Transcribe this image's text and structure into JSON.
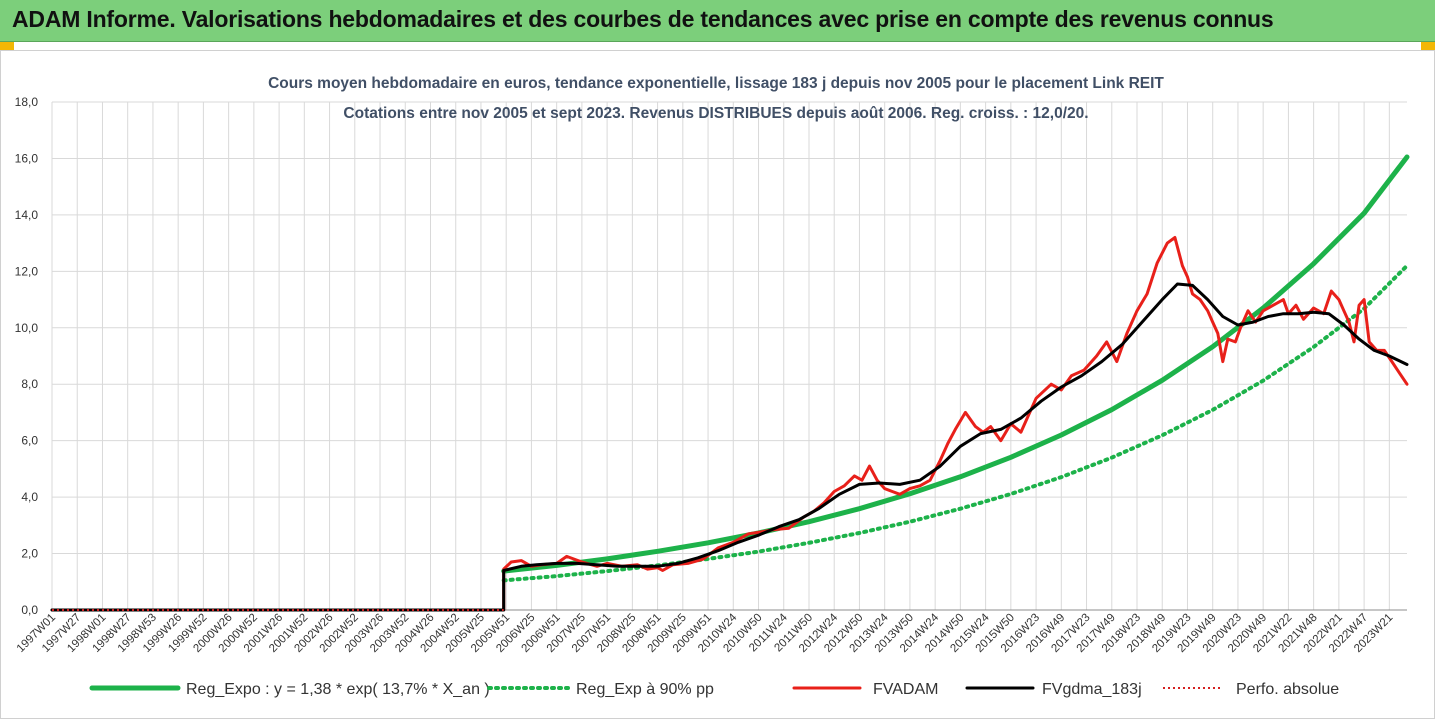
{
  "banner": {
    "title": "ADAM Informe. Valorisations hebdomadaires et des courbes de tendances avec prise en compte des revenus connus"
  },
  "colors": {
    "banner": "#7ccf7b",
    "corner": "#f2b705",
    "reg_expo": "#1db24a",
    "fvadam": "#e8201a",
    "fvgdma": "#000000",
    "perfo": "#d42020",
    "grid": "#d9d9d9"
  },
  "chart_data": {
    "type": "line",
    "title": "Cours moyen hebdomadaire en euros, tendance exponentielle, lissage 183 j depuis nov 2005 pour le placement Link REIT",
    "subtitle": "Cotations entre nov 2005 et sept 2023. Revenus DISTRIBUES depuis août 2006. Reg. croiss. : 12,0/20.",
    "ylim": [
      0,
      18
    ],
    "yticks": [
      "0,0",
      "2,0",
      "4,0",
      "6,0",
      "8,0",
      "10,0",
      "12,0",
      "14,0",
      "16,0",
      "18,0"
    ],
    "xlim": [
      1997.0,
      2023.85
    ],
    "xticks": [
      {
        "label": "1997W01",
        "x": 1997.0
      },
      {
        "label": "1997W27",
        "x": 1997.5
      },
      {
        "label": "1998W01",
        "x": 1998.0
      },
      {
        "label": "1998W27",
        "x": 1998.5
      },
      {
        "label": "1998W53",
        "x": 1999.0
      },
      {
        "label": "1999W26",
        "x": 1999.5
      },
      {
        "label": "1999W52",
        "x": 2000.0
      },
      {
        "label": "2000W26",
        "x": 2000.5
      },
      {
        "label": "2000W52",
        "x": 2001.0
      },
      {
        "label": "2001W26",
        "x": 2001.5
      },
      {
        "label": "2001W52",
        "x": 2002.0
      },
      {
        "label": "2002W26",
        "x": 2002.5
      },
      {
        "label": "2002W52",
        "x": 2003.0
      },
      {
        "label": "2003W26",
        "x": 2003.5
      },
      {
        "label": "2003W52",
        "x": 2004.0
      },
      {
        "label": "2004W26",
        "x": 2004.5
      },
      {
        "label": "2004W52",
        "x": 2005.0
      },
      {
        "label": "2005W25",
        "x": 2005.5
      },
      {
        "label": "2005W51",
        "x": 2006.0
      },
      {
        "label": "2006W25",
        "x": 2006.5
      },
      {
        "label": "2006W51",
        "x": 2007.0
      },
      {
        "label": "2007W25",
        "x": 2007.5
      },
      {
        "label": "2007W51",
        "x": 2008.0
      },
      {
        "label": "2008W25",
        "x": 2008.5
      },
      {
        "label": "2008W51",
        "x": 2009.0
      },
      {
        "label": "2009W25",
        "x": 2009.5
      },
      {
        "label": "2009W51",
        "x": 2010.0
      },
      {
        "label": "2010W24",
        "x": 2010.5
      },
      {
        "label": "2010W50",
        "x": 2011.0
      },
      {
        "label": "2011W24",
        "x": 2011.5
      },
      {
        "label": "2011W50",
        "x": 2012.0
      },
      {
        "label": "2012W24",
        "x": 2012.5
      },
      {
        "label": "2012W50",
        "x": 2013.0
      },
      {
        "label": "2013W24",
        "x": 2013.5
      },
      {
        "label": "2013W50",
        "x": 2014.0
      },
      {
        "label": "2014W24",
        "x": 2014.5
      },
      {
        "label": "2014W50",
        "x": 2015.0
      },
      {
        "label": "2015W24",
        "x": 2015.5
      },
      {
        "label": "2015W50",
        "x": 2016.0
      },
      {
        "label": "2016W23",
        "x": 2016.5
      },
      {
        "label": "2016W49",
        "x": 2017.0
      },
      {
        "label": "2017W23",
        "x": 2017.5
      },
      {
        "label": "2017W49",
        "x": 2018.0
      },
      {
        "label": "2018W23",
        "x": 2018.5
      },
      {
        "label": "2018W49",
        "x": 2019.0
      },
      {
        "label": "2019W23",
        "x": 2019.5
      },
      {
        "label": "2019W49",
        "x": 2020.0
      },
      {
        "label": "2020W23",
        "x": 2020.5
      },
      {
        "label": "2020W49",
        "x": 2021.0
      },
      {
        "label": "2021W22",
        "x": 2021.5
      },
      {
        "label": "2021W48",
        "x": 2022.0
      },
      {
        "label": "2022W21",
        "x": 2022.5
      },
      {
        "label": "2022W47",
        "x": 2023.0
      },
      {
        "label": "2023W21",
        "x": 2023.5
      }
    ],
    "grid": true,
    "legend": "bottom",
    "series": [
      {
        "name": "Reg_Expo : y = 1,38 * exp( 13,7% *  X_an )",
        "style": "solid-thick",
        "color": "#1db24a",
        "x": [
          2005.95,
          2007,
          2008,
          2009,
          2010,
          2011,
          2012,
          2013,
          2014,
          2015,
          2016,
          2017,
          2018,
          2019,
          2020,
          2021,
          2022,
          2023,
          2023.85
        ],
        "y": [
          1.38,
          1.58,
          1.81,
          2.08,
          2.38,
          2.73,
          3.13,
          3.59,
          4.12,
          4.72,
          5.41,
          6.2,
          7.1,
          8.14,
          9.33,
          10.7,
          12.27,
          14.06,
          16.05
        ]
      },
      {
        "name": "Reg_Exp à 90% pp",
        "style": "dotted-thick",
        "color": "#1db24a",
        "x": [
          2005.95,
          2007,
          2008,
          2009,
          2010,
          2011,
          2012,
          2013,
          2014,
          2015,
          2016,
          2017,
          2018,
          2019,
          2020,
          2021,
          2022,
          2023,
          2023.85
        ],
        "y": [
          1.05,
          1.2,
          1.38,
          1.58,
          1.81,
          2.07,
          2.38,
          2.73,
          3.13,
          3.59,
          4.11,
          4.71,
          5.4,
          6.19,
          7.09,
          8.13,
          9.32,
          10.68,
          12.2
        ]
      },
      {
        "name": "FVADAM",
        "style": "solid",
        "color": "#e8201a",
        "x": [
          1997.0,
          2005.95,
          2005.95,
          2006.1,
          2006.3,
          2006.5,
          2006.7,
          2007.0,
          2007.2,
          2007.5,
          2007.8,
          2008.0,
          2008.3,
          2008.6,
          2008.8,
          2009.0,
          2009.1,
          2009.3,
          2009.6,
          2009.9,
          2010.2,
          2010.5,
          2010.8,
          2011.0,
          2011.3,
          2011.6,
          2011.9,
          2012.1,
          2012.3,
          2012.5,
          2012.7,
          2012.9,
          2013.05,
          2013.2,
          2013.35,
          2013.5,
          2013.65,
          2013.8,
          2014.0,
          2014.2,
          2014.4,
          2014.6,
          2014.75,
          2014.9,
          2015.1,
          2015.3,
          2015.45,
          2015.6,
          2015.8,
          2016.0,
          2016.2,
          2016.35,
          2016.5,
          2016.8,
          2017.0,
          2017.2,
          2017.45,
          2017.7,
          2017.9,
          2018.1,
          2018.3,
          2018.5,
          2018.7,
          2018.9,
          2019.1,
          2019.25,
          2019.4,
          2019.5,
          2019.6,
          2019.75,
          2019.9,
          2020.0,
          2020.1,
          2020.2,
          2020.3,
          2020.45,
          2020.55,
          2020.7,
          2020.85,
          2021.0,
          2021.2,
          2021.4,
          2021.5,
          2021.65,
          2021.8,
          2022.0,
          2022.2,
          2022.35,
          2022.5,
          2022.6,
          2022.7,
          2022.8,
          2022.9,
          2023.0,
          2023.1,
          2023.25,
          2023.4,
          2023.55,
          2023.7,
          2023.85
        ],
        "y": [
          0.0,
          0.0,
          1.45,
          1.7,
          1.75,
          1.55,
          1.6,
          1.65,
          1.9,
          1.7,
          1.55,
          1.65,
          1.55,
          1.6,
          1.45,
          1.5,
          1.4,
          1.6,
          1.65,
          1.8,
          2.2,
          2.4,
          2.7,
          2.75,
          2.85,
          2.9,
          3.3,
          3.5,
          3.8,
          4.2,
          4.4,
          4.75,
          4.6,
          5.1,
          4.6,
          4.3,
          4.2,
          4.1,
          4.3,
          4.4,
          4.6,
          5.3,
          5.9,
          6.4,
          7.0,
          6.5,
          6.3,
          6.5,
          6.0,
          6.6,
          6.3,
          6.9,
          7.5,
          8.0,
          7.8,
          8.3,
          8.5,
          9.0,
          9.5,
          8.8,
          9.8,
          10.6,
          11.2,
          12.3,
          13.0,
          13.2,
          12.2,
          11.8,
          11.2,
          11.0,
          10.6,
          10.2,
          9.8,
          8.8,
          9.6,
          9.5,
          10.0,
          10.6,
          10.2,
          10.6,
          10.8,
          11.0,
          10.5,
          10.8,
          10.3,
          10.7,
          10.5,
          11.3,
          11.0,
          10.6,
          10.2,
          9.5,
          10.8,
          11.0,
          9.5,
          9.2,
          9.2,
          8.8,
          8.4,
          8.0
        ]
      },
      {
        "name": "FVgdma_183j",
        "style": "solid",
        "color": "#000000",
        "x": [
          1997.0,
          2005.95,
          2005.95,
          2006.3,
          2006.6,
          2007.0,
          2007.4,
          2007.8,
          2008.2,
          2008.6,
          2009.0,
          2009.4,
          2009.8,
          2010.2,
          2010.6,
          2011.0,
          2011.4,
          2011.8,
          2012.2,
          2012.6,
          2013.0,
          2013.4,
          2013.8,
          2014.2,
          2014.6,
          2015.0,
          2015.4,
          2015.8,
          2016.2,
          2016.6,
          2017.0,
          2017.4,
          2017.8,
          2018.2,
          2018.6,
          2019.0,
          2019.3,
          2019.6,
          2019.9,
          2020.2,
          2020.5,
          2020.8,
          2021.1,
          2021.4,
          2021.7,
          2022.0,
          2022.3,
          2022.6,
          2022.9,
          2023.2,
          2023.5,
          2023.85
        ],
        "y": [
          0.0,
          0.0,
          1.4,
          1.55,
          1.6,
          1.65,
          1.65,
          1.6,
          1.55,
          1.55,
          1.55,
          1.65,
          1.85,
          2.1,
          2.4,
          2.65,
          2.95,
          3.2,
          3.6,
          4.1,
          4.45,
          4.5,
          4.45,
          4.6,
          5.1,
          5.8,
          6.25,
          6.4,
          6.8,
          7.4,
          7.9,
          8.3,
          8.8,
          9.4,
          10.2,
          11.0,
          11.55,
          11.5,
          11.0,
          10.4,
          10.1,
          10.2,
          10.4,
          10.5,
          10.5,
          10.55,
          10.5,
          10.1,
          9.6,
          9.2,
          9.0,
          8.7
        ]
      },
      {
        "name": "Perfo. absolue",
        "style": "dotted",
        "color": "#d42020",
        "x": [
          1997.0,
          2005.95
        ],
        "y": [
          0.0,
          0.0
        ]
      }
    ]
  }
}
